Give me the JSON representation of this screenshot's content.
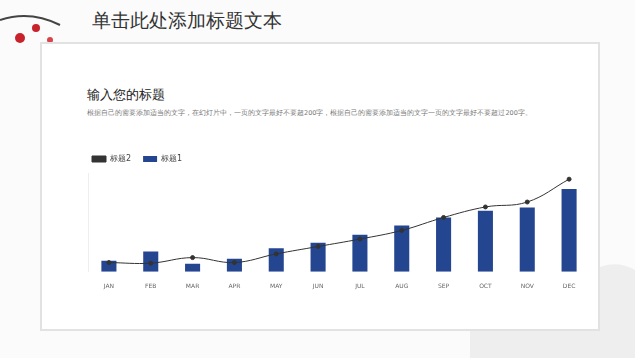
{
  "slide": {
    "title": "单击此处添加标题文本",
    "subtitle": "输入您的标题",
    "text": "根据自己的需要添加适当的文字，在幻灯片中，一页的文字最好不要超200字，根据自己的需要添加适当的文字一页的文字最好不要超过200字。"
  },
  "chart_data": {
    "type": "bar",
    "categories": [
      "JAN",
      "FEB",
      "MAR",
      "APR",
      "MAY",
      "JUN",
      "JUL",
      "AUG",
      "SEP",
      "OCT",
      "NOV",
      "DEC"
    ],
    "series": [
      {
        "name": "标题1",
        "type": "bar",
        "color": "#24458f",
        "values": [
          18,
          33,
          13,
          21,
          38,
          47,
          60,
          75,
          88,
          99,
          104,
          134
        ]
      },
      {
        "name": "标题2",
        "type": "line",
        "color": "#333333",
        "marker": "circle",
        "values": [
          15,
          14,
          23,
          15,
          29,
          41,
          53,
          67,
          88,
          105,
          113,
          150
        ]
      }
    ],
    "ylim": [
      0,
      160
    ],
    "grid": false,
    "legend": "top-left",
    "tick_labels": "x"
  }
}
